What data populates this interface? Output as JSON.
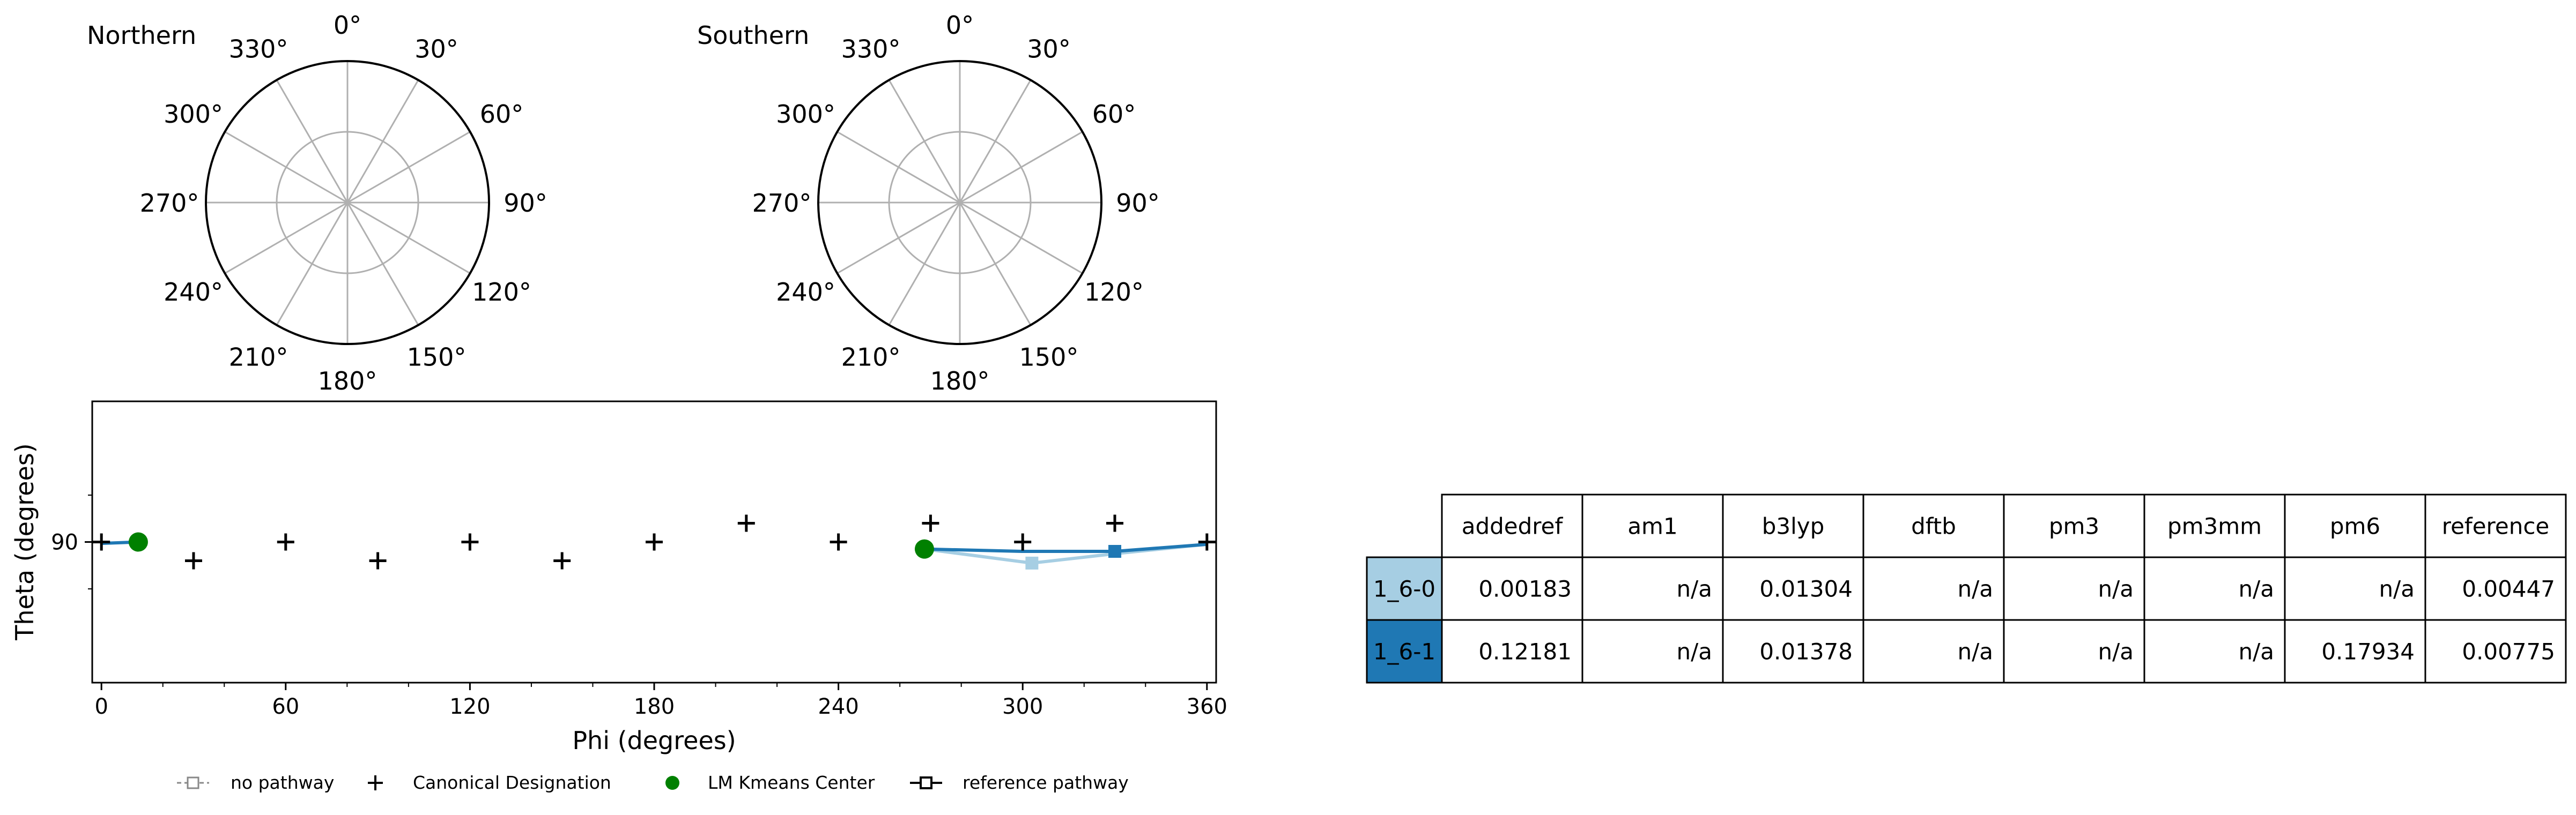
{
  "polar_titles": [
    "Northern",
    "Southern"
  ],
  "polar_angle_labels": [
    "0°",
    "30°",
    "60°",
    "90°",
    "120°",
    "150°",
    "180°",
    "210°",
    "240°",
    "270°",
    "300°",
    "330°"
  ],
  "chart_data": {
    "type": "line",
    "title": "",
    "xlabel": "Phi (degrees)",
    "ylabel": "Theta (degrees)",
    "xlim": [
      -3,
      363
    ],
    "ylim": [
      60,
      120
    ],
    "xticks": [
      0,
      60,
      120,
      180,
      240,
      300,
      360
    ],
    "yticks": [
      90
    ],
    "canonical_designation": [
      {
        "x": 0,
        "y": 90
      },
      {
        "x": 30,
        "y": 86
      },
      {
        "x": 60,
        "y": 90
      },
      {
        "x": 90,
        "y": 86
      },
      {
        "x": 120,
        "y": 90
      },
      {
        "x": 150,
        "y": 86
      },
      {
        "x": 180,
        "y": 90
      },
      {
        "x": 210,
        "y": 94
      },
      {
        "x": 240,
        "y": 90
      },
      {
        "x": 270,
        "y": 94
      },
      {
        "x": 300,
        "y": 90
      },
      {
        "x": 330,
        "y": 94
      },
      {
        "x": 360,
        "y": 90
      }
    ],
    "lm_kmeans_centers": [
      {
        "x": 12,
        "y": 90
      },
      {
        "x": 268,
        "y": 88.5
      }
    ],
    "series": [
      {
        "name": "1_6-0",
        "color": "#a6cee3",
        "x": [
          268,
          303,
          330,
          360
        ],
        "y": [
          88.5,
          85.5,
          87.5,
          89.5
        ],
        "markers": [
          {
            "x": 303,
            "y": 85.5
          }
        ]
      },
      {
        "name": "1_6-1",
        "color": "#1f78b4",
        "x": [
          0,
          12
        ],
        "y": [
          89.7,
          90
        ],
        "markers": []
      },
      {
        "name": "1_6-1",
        "color": "#1f78b4",
        "x": [
          268,
          300,
          330,
          360
        ],
        "y": [
          88.5,
          88,
          88,
          89.5
        ],
        "markers": [
          {
            "x": 330,
            "y": 88
          }
        ]
      }
    ],
    "legend": {
      "placement": "bottom",
      "entries": [
        "no pathway",
        "Canonical Designation",
        "LM Kmeans Center",
        "reference pathway"
      ]
    }
  },
  "table": {
    "columns": [
      "addedref",
      "am1",
      "b3lyp",
      "dftb",
      "pm3",
      "pm3mm",
      "pm6",
      "reference"
    ],
    "rows": [
      {
        "label": "1_6-0",
        "color": "#a6cee3",
        "values": [
          "0.00183",
          "n/a",
          "0.01304",
          "n/a",
          "n/a",
          "n/a",
          "n/a",
          "0.00447"
        ]
      },
      {
        "label": "1_6-1",
        "color": "#1f78b4",
        "values": [
          "0.12181",
          "n/a",
          "0.01378",
          "n/a",
          "n/a",
          "n/a",
          "0.17934",
          "0.00775"
        ]
      }
    ]
  }
}
